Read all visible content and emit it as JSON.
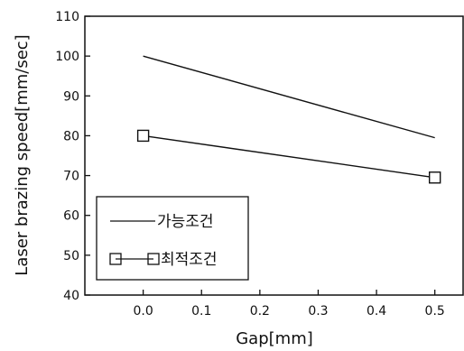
{
  "chart_data": {
    "type": "line",
    "xlabel": "Gap[mm]",
    "ylabel": "Laser brazing speed[mm/sec]",
    "xlim": [
      -0.1,
      0.55
    ],
    "ylim": [
      40,
      110
    ],
    "xticks": [
      0.0,
      0.1,
      0.2,
      0.3,
      0.4,
      0.5
    ],
    "xtick_labels": [
      "0.0",
      "0.1",
      "0.2",
      "0.3",
      "0.4",
      "0.5"
    ],
    "yticks": [
      40,
      50,
      60,
      70,
      80,
      90,
      100,
      110
    ],
    "ytick_labels": [
      "40",
      "50",
      "60",
      "70",
      "80",
      "90",
      "100",
      "110"
    ],
    "grid": false,
    "legend_position": "bottom-left",
    "series": [
      {
        "name": "가능조건",
        "x": [
          0.0,
          0.5
        ],
        "y": [
          100,
          79.5
        ],
        "marker": "none",
        "color": "#111111"
      },
      {
        "name": "최적조건",
        "x": [
          0.0,
          0.5
        ],
        "y": [
          80,
          69.5
        ],
        "marker": "square",
        "color": "#111111"
      }
    ]
  }
}
